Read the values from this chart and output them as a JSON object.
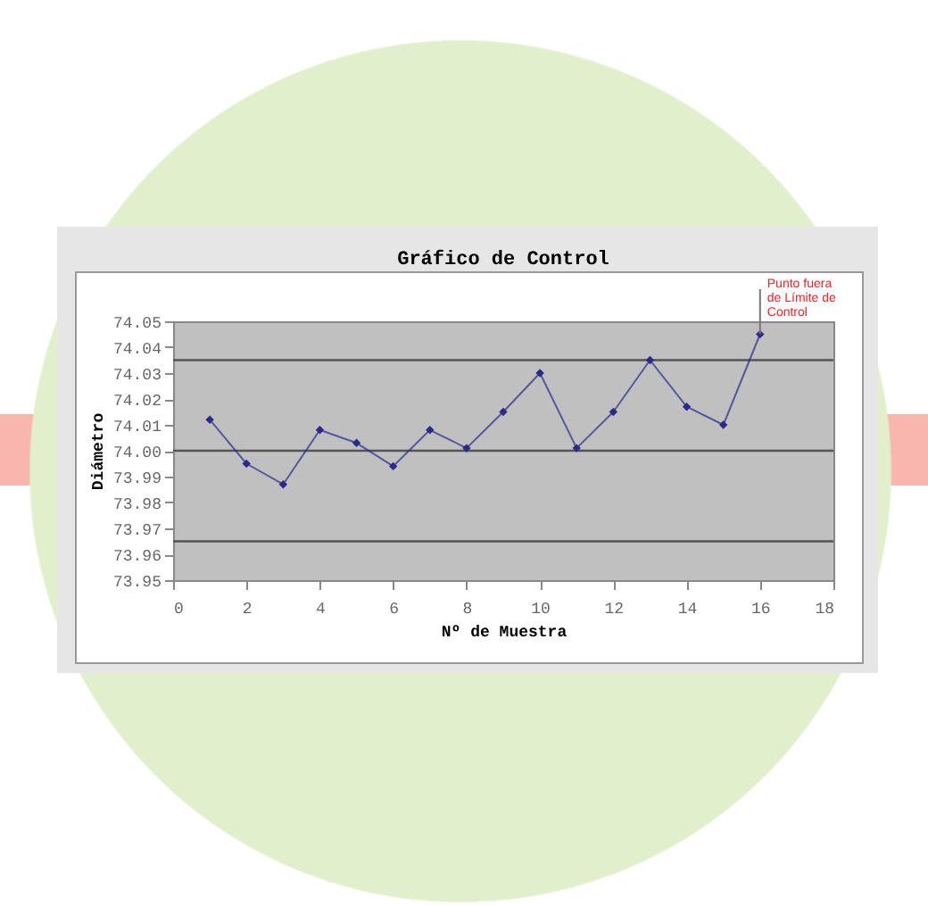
{
  "chart_data": {
    "type": "line",
    "title": "Gráfico de Control",
    "xlabel": "Nº de Muestra",
    "ylabel": "Diámetro",
    "x": [
      1,
      2,
      3,
      4,
      5,
      6,
      7,
      8,
      9,
      10,
      11,
      12,
      13,
      14,
      15,
      16
    ],
    "series": [
      {
        "color": "#2a2a8c",
        "values": [
          74.012,
          73.995,
          73.987,
          74.008,
          74.003,
          73.994,
          74.008,
          74.001,
          74.015,
          74.03,
          74.001,
          74.015,
          74.035,
          74.017,
          74.01,
          74.045
        ]
      }
    ],
    "xlim": [
      0,
      18
    ],
    "xticks": [
      0,
      2,
      4,
      6,
      8,
      10,
      12,
      14,
      16,
      18
    ],
    "ylim": [
      73.95,
      74.05
    ],
    "yticks": [
      73.95,
      73.96,
      73.97,
      73.98,
      73.99,
      {
        "value": 74.0,
        "label": "74.00"
      },
      74.01,
      74.02,
      74.03,
      74.04,
      74.05
    ],
    "ref_lines": [
      {
        "axis": "y",
        "value": 74.035,
        "color": "#555555"
      },
      {
        "axis": "y",
        "value": 74.0,
        "color": "#555555"
      },
      {
        "axis": "y",
        "value": 73.965,
        "color": "#555555"
      }
    ],
    "annotations": [
      {
        "text": "Punto fuera de Límite de Control",
        "x": 16,
        "y": 74.045
      }
    ],
    "grid": false,
    "marker": "diamond",
    "line_style": "solid"
  }
}
